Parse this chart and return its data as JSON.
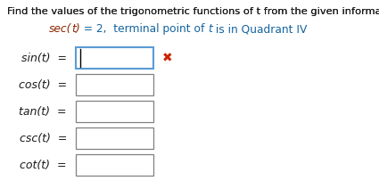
{
  "title": "Find the values of the trigonometric functions of t from the given information.",
  "labels": [
    "sin(t)",
    "cos(t)",
    "tan(t)",
    "csc(t)",
    "cot(t)"
  ],
  "background_color": "#ffffff",
  "title_color": "#1a1a1a",
  "subtitle_sec_color": "#8B2500",
  "subtitle_blue_color": "#1464a0",
  "box_border_active": "#5b9bd5",
  "box_border_inactive": "#808080",
  "box_fill": "#ffffff",
  "cursor_color": "#000000",
  "x_color": "#cc2200",
  "label_color": "#1a1a1a",
  "title_fontsize": 8.2,
  "subtitle_fontsize": 8.8,
  "label_fontsize": 9.0
}
